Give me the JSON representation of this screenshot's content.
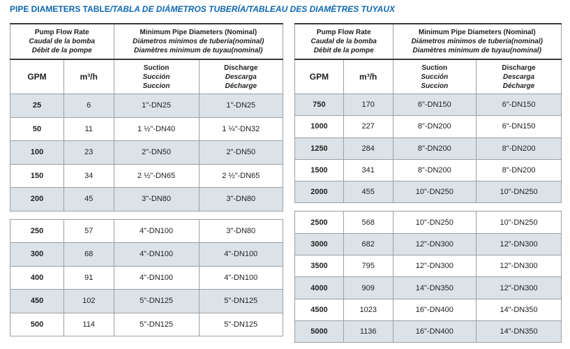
{
  "title": {
    "en": "PIPE DIAMETERS TABLE",
    "intl": "/TABLA DE DIÁMETROS TUBERÍA/TABLEAU DES DIAMÈTRES TUYAUX"
  },
  "colors": {
    "title_blue": "#0e68b2",
    "row_shade": "#dce3e8",
    "border_dark": "#3a3a3a",
    "border_gray": "#9aa0a4",
    "text": "#1e1e1e"
  },
  "header": {
    "flow_en": "Pump Flow Rate",
    "flow_es": "Caudal de la bomba",
    "flow_fr": "Débit de la pompe",
    "diam_en": "Minimum Pipe Diameters (Nominal)",
    "diam_es": "Diámetros mínimos de tubería(nominal)",
    "diam_fr": "Diamètres minimum de tuyau(nominal)",
    "gpm": "GPM",
    "m3h": "m³/h",
    "suction_en": "Suction",
    "suction_es": "Succión",
    "suction_fr": "Succion",
    "discharge_en": "Discharge",
    "discharge_es": "Descarga",
    "discharge_fr": "Décharge"
  },
  "left_table": {
    "sections": [
      {
        "rows": [
          {
            "gpm": "25",
            "m3h": "6",
            "suction": "1\"-DN25",
            "discharge": "1\"-DN25"
          },
          {
            "gpm": "50",
            "m3h": "11",
            "suction": "1 ½\"-DN40",
            "discharge": "1 ¼\"-DN32"
          },
          {
            "gpm": "100",
            "m3h": "23",
            "suction": "2\"-DN50",
            "discharge": "2\"-DN50"
          },
          {
            "gpm": "150",
            "m3h": "34",
            "suction": "2 ½\"-DN65",
            "discharge": "2 ½\"-DN65"
          },
          {
            "gpm": "200",
            "m3h": "45",
            "suction": "3\"-DN80",
            "discharge": "3\"-DN80"
          }
        ]
      },
      {
        "rows": [
          {
            "gpm": "250",
            "m3h": "57",
            "suction": "4\"-DN100",
            "discharge": "3\"-DN80"
          },
          {
            "gpm": "300",
            "m3h": "68",
            "suction": "4\"-DN100",
            "discharge": "4\"-DN100"
          },
          {
            "gpm": "400",
            "m3h": "91",
            "suction": "4\"-DN100",
            "discharge": "4\"-DN100"
          },
          {
            "gpm": "450",
            "m3h": "102",
            "suction": "5\"-DN125",
            "discharge": "5\"-DN125"
          },
          {
            "gpm": "500",
            "m3h": "114",
            "suction": "5\"-DN125",
            "discharge": "5\"-DN125"
          }
        ]
      }
    ]
  },
  "right_table": {
    "sections": [
      {
        "rows": [
          {
            "gpm": "750",
            "m3h": "170",
            "suction": "6\"-DN150",
            "discharge": "6\"-DN150"
          },
          {
            "gpm": "1000",
            "m3h": "227",
            "suction": "8\"-DN200",
            "discharge": "6\"-DN150"
          },
          {
            "gpm": "1250",
            "m3h": "284",
            "suction": "8\"-DN200",
            "discharge": "8\"-DN200"
          },
          {
            "gpm": "1500",
            "m3h": "341",
            "suction": "8\"-DN200",
            "discharge": "8\"-DN200"
          },
          {
            "gpm": "2000",
            "m3h": "455",
            "suction": "10\"-DN250",
            "discharge": "10\"-DN250"
          }
        ]
      },
      {
        "rows": [
          {
            "gpm": "2500",
            "m3h": "568",
            "suction": "10\"-DN250",
            "discharge": "10\"-DN250"
          },
          {
            "gpm": "3000",
            "m3h": "682",
            "suction": "12\"-DN300",
            "discharge": "12\"-DN300"
          },
          {
            "gpm": "3500",
            "m3h": "795",
            "suction": "12\"-DN300",
            "discharge": "12\"-DN300"
          },
          {
            "gpm": "4000",
            "m3h": "909",
            "suction": "14\"-DN350",
            "discharge": "12\"-DN300"
          },
          {
            "gpm": "4500",
            "m3h": "1023",
            "suction": "16\"-DN400",
            "discharge": "14\"-DN350"
          },
          {
            "gpm": "5000",
            "m3h": "1136",
            "suction": "16\"-DN400",
            "discharge": "14\"-DN350"
          }
        ]
      }
    ]
  }
}
